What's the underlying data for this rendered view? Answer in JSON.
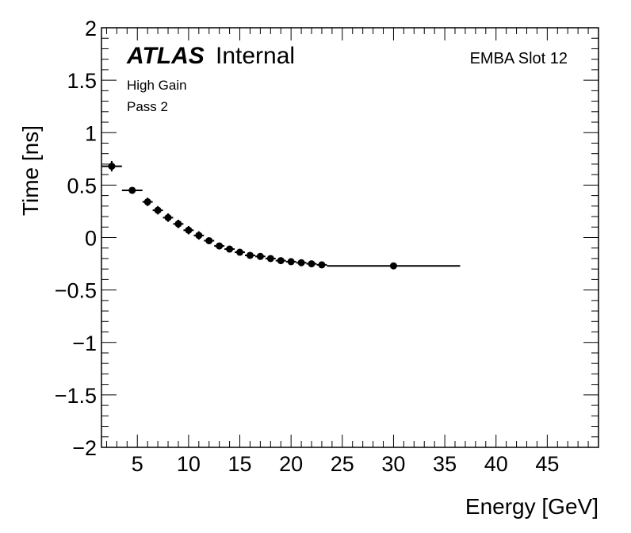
{
  "chart_data": {
    "type": "scatter",
    "title": "",
    "xlabel": "Energy [GeV]",
    "ylabel": "Time [ns]",
    "xlim": [
      1.5,
      50
    ],
    "ylim": [
      -2,
      2
    ],
    "xticks": [
      5,
      10,
      15,
      20,
      25,
      30,
      35,
      40,
      45
    ],
    "xtick_labels": [
      "5",
      "10",
      "15",
      "20",
      "25",
      "30",
      "35",
      "40",
      "45"
    ],
    "yticks": [
      2,
      1.5,
      1,
      0.5,
      0,
      -0.5,
      -1,
      -1.5,
      -2
    ],
    "ytick_labels": [
      "2",
      "1.5",
      "1",
      "0.5",
      "0",
      "−0.5",
      "−1",
      "−1.5",
      "−2"
    ],
    "grid": false,
    "series": [
      {
        "points": [
          {
            "x": 2.5,
            "y": 0.68,
            "xlo": 1.5,
            "xhi": 3.5,
            "ylo": 0.63,
            "yhi": 0.73
          },
          {
            "x": 4.5,
            "y": 0.45,
            "xlo": 3.5,
            "xhi": 5.5,
            "ylo": 0.42,
            "yhi": 0.48
          },
          {
            "x": 6,
            "y": 0.34,
            "xlo": 5.5,
            "xhi": 6.5,
            "ylo": 0.3,
            "yhi": 0.38
          },
          {
            "x": 7,
            "y": 0.26,
            "xlo": 6.5,
            "xhi": 7.5,
            "ylo": 0.22,
            "yhi": 0.3
          },
          {
            "x": 8,
            "y": 0.19,
            "xlo": 7.5,
            "xhi": 8.5,
            "ylo": 0.15,
            "yhi": 0.23
          },
          {
            "x": 9,
            "y": 0.13,
            "xlo": 8.5,
            "xhi": 9.5,
            "ylo": 0.09,
            "yhi": 0.17
          },
          {
            "x": 10,
            "y": 0.07,
            "xlo": 9.5,
            "xhi": 10.5,
            "ylo": 0.03,
            "yhi": 0.11
          },
          {
            "x": 11,
            "y": 0.02,
            "xlo": 10.5,
            "xhi": 11.5,
            "ylo": -0.02,
            "yhi": 0.06
          },
          {
            "x": 12,
            "y": -0.03,
            "xlo": 11.5,
            "xhi": 12.5,
            "ylo": -0.06,
            "yhi": 0.0
          },
          {
            "x": 13,
            "y": -0.08,
            "xlo": 12.5,
            "xhi": 13.5,
            "ylo": -0.11,
            "yhi": -0.05
          },
          {
            "x": 14,
            "y": -0.11,
            "xlo": 13.5,
            "xhi": 14.5,
            "ylo": -0.14,
            "yhi": -0.08
          },
          {
            "x": 15,
            "y": -0.14,
            "xlo": 14.5,
            "xhi": 15.5,
            "ylo": -0.17,
            "yhi": -0.11
          },
          {
            "x": 16,
            "y": -0.17,
            "xlo": 15.5,
            "xhi": 16.5,
            "ylo": -0.2,
            "yhi": -0.14
          },
          {
            "x": 17,
            "y": -0.18,
            "xlo": 16.5,
            "xhi": 17.5,
            "ylo": -0.21,
            "yhi": -0.15
          },
          {
            "x": 18,
            "y": -0.2,
            "xlo": 17.5,
            "xhi": 18.5,
            "ylo": -0.23,
            "yhi": -0.17
          },
          {
            "x": 19,
            "y": -0.22,
            "xlo": 18.5,
            "xhi": 19.5,
            "ylo": -0.25,
            "yhi": -0.19
          },
          {
            "x": 20,
            "y": -0.23,
            "xlo": 19.5,
            "xhi": 20.5,
            "ylo": -0.26,
            "yhi": -0.2
          },
          {
            "x": 21,
            "y": -0.24,
            "xlo": 20.5,
            "xhi": 21.5,
            "ylo": -0.27,
            "yhi": -0.21
          },
          {
            "x": 22,
            "y": -0.25,
            "xlo": 21.5,
            "xhi": 22.5,
            "ylo": -0.28,
            "yhi": -0.22
          },
          {
            "x": 23,
            "y": -0.26,
            "xlo": 22.5,
            "xhi": 23.5,
            "ylo": -0.29,
            "yhi": -0.23
          },
          {
            "x": 30,
            "y": -0.27,
            "xlo": 23.5,
            "xhi": 36.5,
            "ylo": -0.29,
            "yhi": -0.25
          }
        ]
      }
    ],
    "annotations": {
      "experiment": "ATLAS",
      "status": "Internal",
      "line1": "High Gain",
      "line2": "Pass 2",
      "module": "EMBA Slot 12"
    }
  }
}
